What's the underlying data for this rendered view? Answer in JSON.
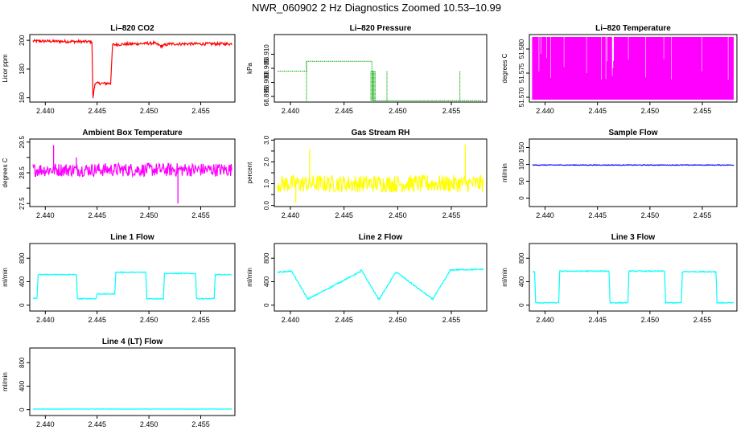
{
  "page": {
    "title": "NWR_060902  2 Hz Diagnostics Zoomed 10.53–10.99"
  },
  "chart_data": [
    {
      "type": "line",
      "title": "Li–820 CO2",
      "ylabel": "Licor ppm",
      "color": "#ff0000",
      "xlim": [
        2.4385,
        2.4583
      ],
      "ylim": [
        157,
        204
      ],
      "xticks": [
        2.44,
        2.445,
        2.45,
        2.455
      ],
      "xtick_labels": [
        "2.440",
        "2.445",
        "2.450",
        "2.455"
      ],
      "yticks": [
        160,
        180,
        200
      ],
      "ytick_labels": [
        "160",
        "180",
        "200"
      ],
      "series": [
        {
          "x": [
            2.4388,
            2.4445,
            2.4446,
            2.4448,
            2.4463,
            2.4465,
            2.4505,
            2.4512,
            2.452,
            2.458
          ],
          "y": [
            199.5,
            199,
            160,
            170,
            170,
            197,
            198,
            196,
            197.5,
            197.5
          ],
          "noise": 1.0
        }
      ]
    },
    {
      "type": "step",
      "title": "Li–820 Pressure",
      "ylabel": "kPa",
      "color": "#00aa00",
      "xlim": [
        2.4385,
        2.4583
      ],
      "ylim": [
        68.893,
        68.917
      ],
      "xticks": [
        2.44,
        2.445,
        2.45,
        2.455
      ],
      "xtick_labels": [
        "2.440",
        "2.445",
        "2.450",
        "2.455"
      ],
      "yticks": [
        68.895,
        68.9,
        68.905,
        68.91
      ],
      "ytick_labels": [
        "68.895",
        "68.900",
        "68.905",
        "68.910"
      ],
      "series": [
        {
          "x": [
            2.4388,
            2.4414,
            2.4415,
            2.4476,
            2.4477,
            2.458
          ],
          "y": [
            68.904,
            68.904,
            68.9075,
            68.904,
            68.8935,
            68.8935
          ],
          "spikes": [
            {
              "x": 2.4415,
              "y": 68.9075
            },
            {
              "x": 2.4475,
              "y": 68.904
            },
            {
              "x": 2.4476,
              "y": 68.904
            },
            {
              "x": 2.4477,
              "y": 68.904
            },
            {
              "x": 2.4478,
              "y": 68.904
            },
            {
              "x": 2.4479,
              "y": 68.904
            },
            {
              "x": 2.449,
              "y": 68.904
            },
            {
              "x": 2.4558,
              "y": 68.904
            }
          ]
        }
      ]
    },
    {
      "type": "line",
      "title": "Li–820 Temperature",
      "ylabel": "degrees C",
      "color": "#ff00ff",
      "xlim": [
        2.4385,
        2.4583
      ],
      "ylim": [
        51.569,
        51.583
      ],
      "xticks": [
        2.44,
        2.445,
        2.45,
        2.455
      ],
      "xtick_labels": [
        "2.440",
        "2.445",
        "2.450",
        "2.455"
      ],
      "yticks": [
        51.57,
        51.575,
        51.58
      ],
      "ytick_labels": [
        "51.570",
        "51.575",
        "51.580"
      ],
      "series": [
        {
          "band": [
            51.5695,
            51.5825
          ],
          "x_range": [
            2.4388,
            2.458
          ]
        }
      ]
    },
    {
      "type": "line",
      "title": "Ambient Box Temperature",
      "ylabel": "degrees C",
      "color": "#ff00ff",
      "xlim": [
        2.4385,
        2.4583
      ],
      "ylim": [
        27.4,
        29.6
      ],
      "xticks": [
        2.44,
        2.445,
        2.45,
        2.455
      ],
      "xtick_labels": [
        "2.440",
        "2.445",
        "2.450",
        "2.455"
      ],
      "yticks": [
        27.5,
        28,
        28.5,
        29,
        29.5
      ],
      "ytick_labels": [
        "27.5",
        "",
        "28.5",
        "",
        "29.5"
      ],
      "series": [
        {
          "x": [
            2.4388,
            2.458
          ],
          "y": [
            28.6,
            28.6
          ],
          "noise": 0.22,
          "spikes": [
            {
              "x": 2.4408,
              "y": 29.4
            },
            {
              "x": 2.443,
              "y": 29.0
            },
            {
              "x": 2.4528,
              "y": 27.5
            }
          ]
        }
      ]
    },
    {
      "type": "line",
      "title": "Gas Stream RH",
      "ylabel": "percent",
      "color": "#ffff00",
      "xlim": [
        2.4385,
        2.4583
      ],
      "ylim": [
        -0.05,
        3.05
      ],
      "xticks": [
        2.44,
        2.445,
        2.45,
        2.455
      ],
      "xtick_labels": [
        "2.440",
        "2.445",
        "2.450",
        "2.455"
      ],
      "yticks": [
        0,
        0.5,
        1,
        1.5,
        2,
        2.5,
        3
      ],
      "ytick_labels": [
        "0.0",
        "",
        "1.0",
        "",
        "2.0",
        "",
        "3.0"
      ],
      "series": [
        {
          "x": [
            2.4388,
            2.458
          ],
          "y": [
            1.0,
            1.0
          ],
          "noise": 0.4,
          "spikes": [
            {
              "x": 2.4418,
              "y": 2.6
            },
            {
              "x": 2.4563,
              "y": 2.8
            },
            {
              "x": 2.4405,
              "y": 0.1
            }
          ]
        }
      ]
    },
    {
      "type": "line",
      "title": "Sample Flow",
      "ylabel": "ml/min",
      "color": "#0000ff",
      "xlim": [
        2.4385,
        2.4583
      ],
      "ylim": [
        -25,
        175
      ],
      "xticks": [
        2.44,
        2.445,
        2.45,
        2.455
      ],
      "xtick_labels": [
        "2.440",
        "2.445",
        "2.450",
        "2.455"
      ],
      "yticks": [
        0,
        50,
        100,
        150
      ],
      "ytick_labels": [
        "0",
        "50",
        "100",
        "150"
      ],
      "series": [
        {
          "x": [
            2.4388,
            2.458
          ],
          "y": [
            98,
            98
          ],
          "noise": 1.0
        }
      ]
    },
    {
      "type": "line",
      "title": "Line 1 Flow",
      "ylabel": "ml/min",
      "color": "#00ffff",
      "xlim": [
        2.4385,
        2.4583
      ],
      "ylim": [
        -100,
        1050
      ],
      "xticks": [
        2.44,
        2.445,
        2.45,
        2.455
      ],
      "xtick_labels": [
        "2.440",
        "2.445",
        "2.450",
        "2.455"
      ],
      "yticks": [
        0,
        400,
        800
      ],
      "ytick_labels": [
        "0",
        "400",
        "800"
      ],
      "series": [
        {
          "x": [
            2.4388,
            2.4392,
            2.4393,
            2.443,
            2.4431,
            2.4449,
            2.445,
            2.4467,
            2.4468,
            2.4497,
            2.4498,
            2.4514,
            2.4515,
            2.4545,
            2.4546,
            2.4563,
            2.4564,
            2.458
          ],
          "y": [
            120,
            120,
            520,
            520,
            110,
            110,
            190,
            190,
            560,
            560,
            110,
            110,
            540,
            540,
            110,
            110,
            520,
            520
          ],
          "noise": 8
        }
      ]
    },
    {
      "type": "line",
      "title": "Line 2 Flow",
      "ylabel": "ml/min",
      "color": "#00ffff",
      "xlim": [
        2.4385,
        2.4583
      ],
      "ylim": [
        -100,
        1050
      ],
      "xticks": [
        2.44,
        2.445,
        2.45,
        2.455
      ],
      "xtick_labels": [
        "2.440",
        "2.445",
        "2.450",
        "2.455"
      ],
      "yticks": [
        0,
        400,
        800
      ],
      "ytick_labels": [
        "0",
        "400",
        "800"
      ],
      "series": [
        {
          "x": [
            2.4388,
            2.44,
            2.4401,
            2.4416,
            2.4417,
            2.4465,
            2.4466,
            2.4482,
            2.4483,
            2.4498,
            2.4499,
            2.4532,
            2.4533,
            2.4548,
            2.4549,
            2.458
          ],
          "y": [
            560,
            580,
            580,
            110,
            110,
            570,
            600,
            110,
            110,
            550,
            560,
            110,
            110,
            560,
            600,
            610
          ],
          "noise": 10
        }
      ]
    },
    {
      "type": "line",
      "title": "Line 3 Flow",
      "ylabel": "ml/min",
      "color": "#00ffff",
      "xlim": [
        2.4385,
        2.4583
      ],
      "ylim": [
        -100,
        1050
      ],
      "xticks": [
        2.44,
        2.445,
        2.45,
        2.455
      ],
      "xtick_labels": [
        "2.440",
        "2.445",
        "2.450",
        "2.455"
      ],
      "yticks": [
        0,
        400,
        800
      ],
      "ytick_labels": [
        "0",
        "400",
        "800"
      ],
      "series": [
        {
          "x": [
            2.4388,
            2.439,
            2.4391,
            2.4413,
            2.4414,
            2.4461,
            2.4462,
            2.4479,
            2.448,
            2.4514,
            2.4515,
            2.453,
            2.4531,
            2.4563,
            2.4564,
            2.458
          ],
          "y": [
            570,
            570,
            40,
            40,
            580,
            580,
            40,
            40,
            580,
            580,
            40,
            40,
            570,
            570,
            40,
            40
          ],
          "noise": 8
        }
      ]
    },
    {
      "type": "line",
      "title": "Line 4 (LT) Flow",
      "ylabel": "ml/min",
      "color": "#00ffff",
      "xlim": [
        2.4385,
        2.4583
      ],
      "ylim": [
        -100,
        1050
      ],
      "xticks": [
        2.44,
        2.445,
        2.45,
        2.455
      ],
      "xtick_labels": [
        "2.440",
        "2.445",
        "2.450",
        "2.455"
      ],
      "yticks": [
        0,
        400,
        800
      ],
      "ytick_labels": [
        "0",
        "400",
        "800"
      ],
      "series": [
        {
          "x": [
            2.4388,
            2.458
          ],
          "y": [
            10,
            10
          ],
          "noise": 2
        }
      ]
    }
  ]
}
